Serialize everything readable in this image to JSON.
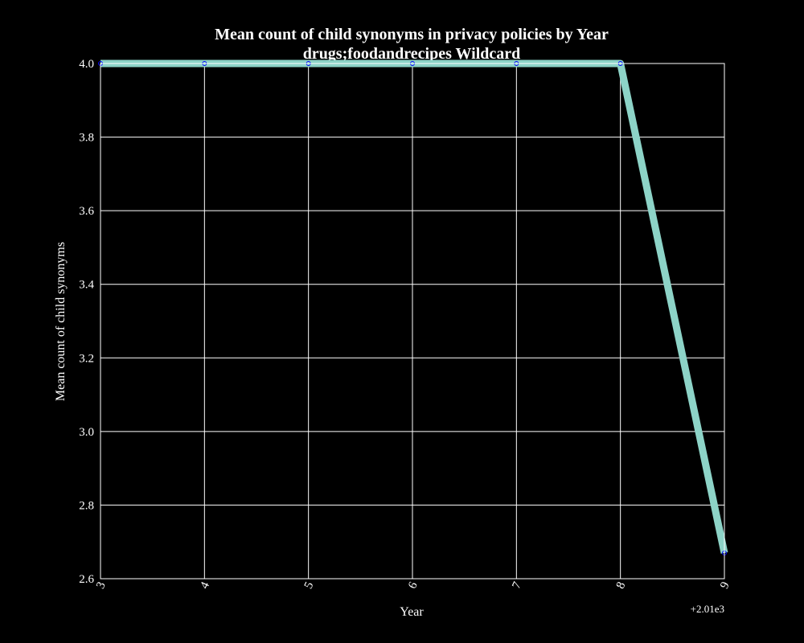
{
  "chart_data": {
    "type": "line",
    "title": "Mean count of child synonyms in privacy policies by Year",
    "subtitle": "drugs;foodandrecipes Wildcard",
    "xlabel": "Year",
    "ylabel": "Mean count of child synonyms",
    "x_offset_label": "+2.01e3",
    "x": [
      2013,
      2014,
      2015,
      2016,
      2017,
      2018,
      2019
    ],
    "x_tick_labels": [
      "3",
      "4",
      "5",
      "6",
      "7",
      "8",
      "9"
    ],
    "y_ticks": [
      2.6,
      2.8,
      3.0,
      3.2,
      3.4,
      3.6,
      3.8,
      4.0
    ],
    "y_tick_labels": [
      "2.6",
      "2.8",
      "3.0",
      "3.2",
      "3.4",
      "3.6",
      "3.8",
      "4.0"
    ],
    "xlim": [
      2013,
      2019
    ],
    "ylim": [
      2.6,
      4.0
    ],
    "grid": true,
    "series": [
      {
        "values": [
          4.0,
          4.0,
          4.0,
          4.0,
          4.0,
          4.0,
          2.67
        ],
        "color": "#8dd3c7",
        "marker_color": "#0000ff"
      }
    ],
    "background": "#000000",
    "foreground": "#ffffff"
  }
}
